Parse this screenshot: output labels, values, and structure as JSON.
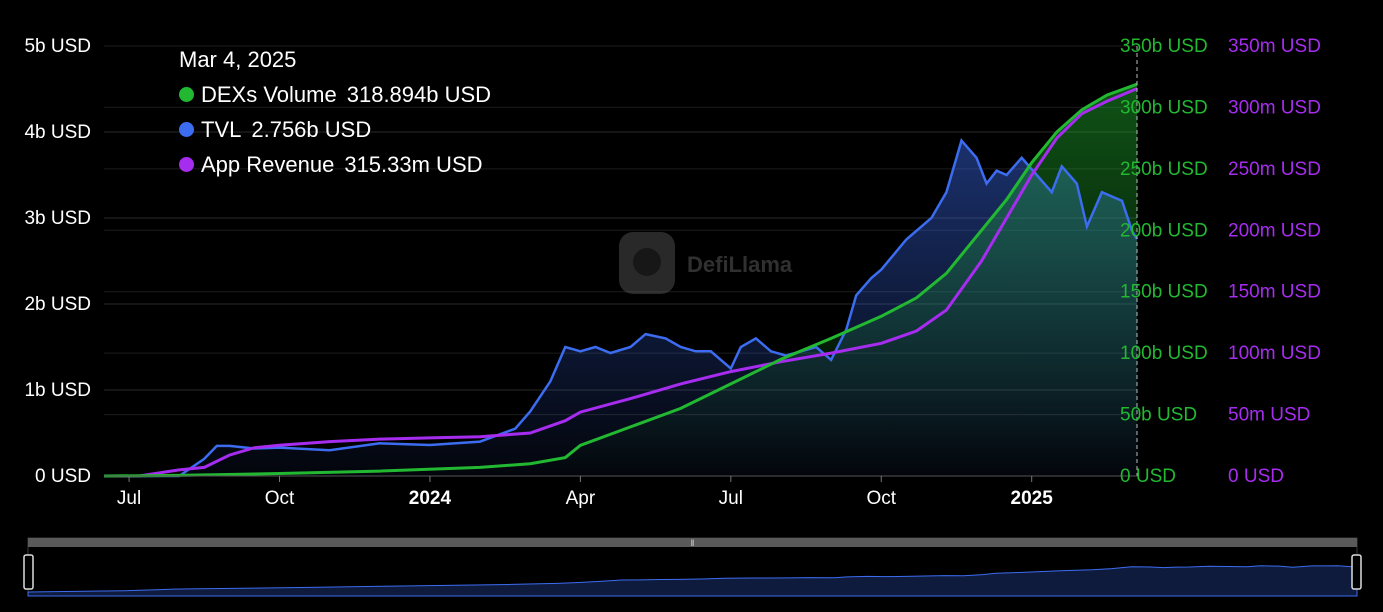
{
  "tooltip": {
    "date": "Mar 4, 2025",
    "items": [
      {
        "label": "DEXs Volume",
        "value": "318.894b USD",
        "color": "#22b831"
      },
      {
        "label": "TVL",
        "value": "2.756b USD",
        "color": "#3c6cf0"
      },
      {
        "label": "App Revenue",
        "value": "315.33m USD",
        "color": "#a62cf0"
      }
    ]
  },
  "watermark": "DefiLlama",
  "colors": {
    "tvl": "#3c6cf0",
    "dex": "#22b831",
    "revenue": "#a62cf0",
    "background": "#000000",
    "grid": "#2a2a2a"
  },
  "chart_data": {
    "type": "area",
    "x_unit": "months since Jun 2023",
    "x_ticks": [
      {
        "label": "Jul",
        "x": 1
      },
      {
        "label": "Oct",
        "x": 4
      },
      {
        "label": "2024",
        "x": 7,
        "bold": true
      },
      {
        "label": "Apr",
        "x": 10
      },
      {
        "label": "Jul",
        "x": 13
      },
      {
        "label": "Oct",
        "x": 16
      },
      {
        "label": "2025",
        "x": 19,
        "bold": true
      }
    ],
    "xlim": [
      0.5,
      21.1
    ],
    "axes": {
      "left": {
        "series": "TVL",
        "ylim": [
          0,
          5000000000
        ],
        "ticks": [
          "0 USD",
          "1b USD",
          "2b USD",
          "3b USD",
          "4b USD",
          "5b USD"
        ]
      },
      "right1": {
        "series": "DEXs Volume",
        "ylim": [
          0,
          350000000000
        ],
        "ticks": [
          "0 USD",
          "50b USD",
          "100b USD",
          "150b USD",
          "200b USD",
          "250b USD",
          "300b USD",
          "350b USD"
        ]
      },
      "right2": {
        "series": "App Revenue",
        "ylim": [
          0,
          350000000
        ],
        "ticks": [
          "0 USD",
          "50m USD",
          "100m USD",
          "150m USD",
          "200m USD",
          "250m USD",
          "300m USD",
          "350m USD"
        ]
      }
    },
    "series": [
      {
        "name": "TVL",
        "type": "area",
        "axis": "left",
        "x": [
          0.5,
          1.5,
          2.0,
          2.5,
          2.75,
          3.0,
          3.5,
          4.0,
          5.0,
          6.0,
          7.0,
          8.0,
          8.7,
          9.0,
          9.4,
          9.7,
          10.0,
          10.3,
          10.6,
          11.0,
          11.3,
          11.7,
          12.0,
          12.3,
          12.6,
          13.0,
          13.2,
          13.5,
          13.8,
          14.1,
          14.4,
          14.7,
          15.0,
          15.3,
          15.5,
          15.8,
          16.0,
          16.5,
          17.0,
          17.3,
          17.6,
          17.9,
          18.1,
          18.3,
          18.5,
          18.8,
          19.1,
          19.4,
          19.6,
          19.9,
          20.1,
          20.4,
          20.6,
          20.8,
          21.0,
          21.1
        ],
        "y": [
          0,
          0,
          0,
          200000000,
          350000000,
          350000000,
          320000000,
          330000000,
          300000000,
          380000000,
          360000000,
          400000000,
          550000000,
          750000000,
          1100000000,
          1500000000,
          1450000000,
          1500000000,
          1430000000,
          1500000000,
          1650000000,
          1600000000,
          1500000000,
          1450000000,
          1450000000,
          1250000000,
          1500000000,
          1600000000,
          1450000000,
          1400000000,
          1450000000,
          1500000000,
          1350000000,
          1700000000,
          2100000000,
          2300000000,
          2400000000,
          2750000000,
          3000000000,
          3300000000,
          3900000000,
          3700000000,
          3400000000,
          3550000000,
          3500000000,
          3700000000,
          3500000000,
          3300000000,
          3600000000,
          3400000000,
          2900000000,
          3300000000,
          3250000000,
          3200000000,
          2850000000,
          2756000000
        ]
      },
      {
        "name": "DEXs Volume",
        "type": "line",
        "axis": "right1",
        "x": [
          0.5,
          2.0,
          4.0,
          6.0,
          8.0,
          9.0,
          9.7,
          10.0,
          11.0,
          12.0,
          13.0,
          14.0,
          15.0,
          16.0,
          16.7,
          17.3,
          18.0,
          18.5,
          19.0,
          19.5,
          20.0,
          20.5,
          21.1
        ],
        "y": [
          0,
          500000000,
          2000000000,
          4000000000,
          7000000000,
          10000000000,
          15000000000,
          25000000000,
          40000000000,
          55000000000,
          75000000000,
          95000000000,
          112000000000,
          130000000000,
          145000000000,
          165000000000,
          200000000000,
          225000000000,
          255000000000,
          280000000000,
          298000000000,
          310000000000,
          318894000000
        ]
      },
      {
        "name": "App Revenue",
        "type": "line",
        "axis": "right2",
        "x": [
          0.5,
          1.2,
          2.0,
          2.5,
          3.0,
          3.5,
          4.0,
          5.0,
          6.0,
          7.0,
          8.0,
          9.0,
          9.7,
          10.0,
          11.0,
          12.0,
          13.0,
          14.0,
          15.0,
          16.0,
          16.7,
          17.3,
          18.0,
          18.5,
          19.0,
          19.5,
          20.0,
          20.5,
          21.1
        ],
        "y": [
          0,
          0,
          5000000,
          7000000,
          17000000,
          23000000,
          25000000,
          28000000,
          30000000,
          31000000,
          32000000,
          35000000,
          45000000,
          52000000,
          63000000,
          75000000,
          85000000,
          93000000,
          100000000,
          108000000,
          118000000,
          135000000,
          175000000,
          210000000,
          245000000,
          275000000,
          295000000,
          305000000,
          315330000
        ]
      }
    ],
    "grid": true
  }
}
